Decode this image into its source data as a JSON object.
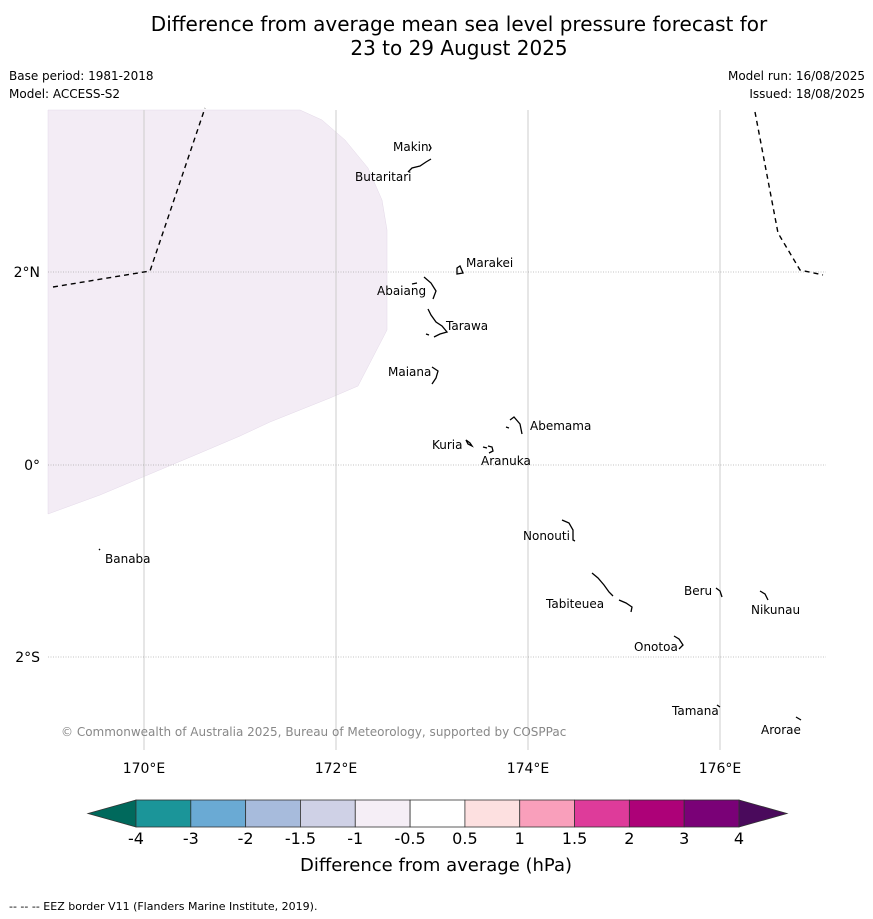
{
  "title_line1": "Difference from average mean sea level pressure forecast for",
  "title_line2": "23 to 29 August 2025",
  "base_period": "Base period: 1981-2018",
  "model": "Model: ACCESS-S2",
  "model_run": "Model run: 16/08/2025",
  "issued": "Issued: 18/08/2025",
  "copyright": "© Commonwealth of Australia 2025, Bureau of Meteorology, supported by COSPPac",
  "footer": "--  --  -- EEZ border V11 (Flanders Marine Institute, 2019).",
  "map": {
    "lon_labels": [
      "170°E",
      "172°E",
      "174°E",
      "176°E"
    ],
    "lat_labels": [
      "2°N",
      "0°",
      "2°S"
    ],
    "islands": [
      {
        "name": "Makin",
        "label": "Makin"
      },
      {
        "name": "Butaritari",
        "label": "Butaritari"
      },
      {
        "name": "Marakei",
        "label": "Marakei"
      },
      {
        "name": "Abaiang",
        "label": "Abaiang"
      },
      {
        "name": "Tarawa",
        "label": "Tarawa"
      },
      {
        "name": "Maiana",
        "label": "Maiana"
      },
      {
        "name": "Abemama",
        "label": "Abemama"
      },
      {
        "name": "Kuria",
        "label": "Kuria"
      },
      {
        "name": "Aranuka",
        "label": "Aranuka"
      },
      {
        "name": "Nonouti",
        "label": "Nonouti"
      },
      {
        "name": "Banaba",
        "label": "Banaba"
      },
      {
        "name": "Tabiteuea",
        "label": "Tabiteuea"
      },
      {
        "name": "Beru",
        "label": "Beru"
      },
      {
        "name": "Nikunau",
        "label": "Nikunau"
      },
      {
        "name": "Onotoa",
        "label": "Onotoa"
      },
      {
        "name": "Tamana",
        "label": "Tamana"
      },
      {
        "name": "Arorae",
        "label": "Arorae"
      }
    ],
    "shaded_anomaly_class": "-1 to -0.5"
  },
  "colorbar": {
    "label": "Difference from average (hPa)",
    "ticks": [
      "-4",
      "-3",
      "-2",
      "-1.5",
      "-1",
      "-0.5",
      "0.5",
      "1",
      "1.5",
      "2",
      "3",
      "4"
    ],
    "under_color": "#00695c",
    "over_color": "#4a0a5c",
    "colors": [
      "#1b9599",
      "#6aaad4",
      "#a7bbdc",
      "#cfd1e6",
      "#f5eef6",
      "#ffffff",
      "#fde0e0",
      "#f99fbb",
      "#de3b9a",
      "#ad0178",
      "#7a0177"
    ]
  }
}
